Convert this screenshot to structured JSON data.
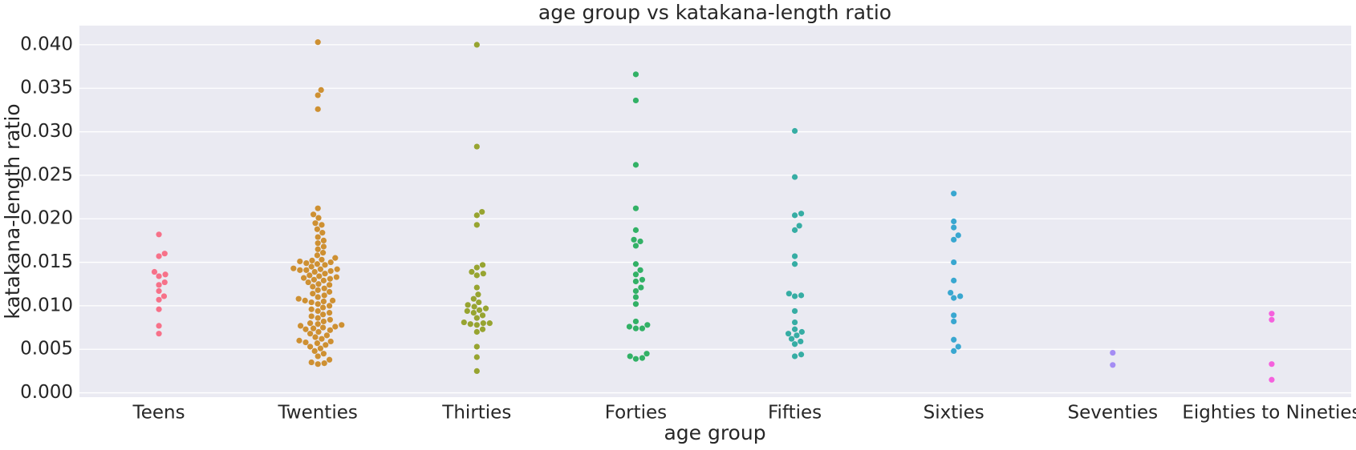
{
  "chart_data": {
    "type": "swarm",
    "title": "age group vs katakana-length ratio",
    "x_label": "age group",
    "y_label": "katakana-length ratio",
    "categories": [
      "Teens",
      "Twenties",
      "Thirties",
      "Forties",
      "Fifties",
      "Sixties",
      "Seventies",
      "Eighties to Nineties"
    ],
    "colors": [
      "#f77189",
      "#ce9032",
      "#97a431",
      "#32b166",
      "#36ada4",
      "#39a7d0",
      "#a48cf4",
      "#f561dd"
    ],
    "values": [
      [
        0.0182,
        0.016,
        0.0157,
        0.0139,
        0.0136,
        0.0134,
        0.0127,
        0.0124,
        0.0117,
        0.0111,
        0.0107,
        0.0096,
        0.0077,
        0.0068
      ],
      [
        0.0403,
        0.0348,
        0.0342,
        0.0326,
        0.0212,
        0.0205,
        0.0201,
        0.0195,
        0.0193,
        0.0188,
        0.0184,
        0.0179,
        0.0175,
        0.0172,
        0.0168,
        0.0165,
        0.0161,
        0.0158,
        0.0155,
        0.0153,
        0.0152,
        0.0151,
        0.015,
        0.0149,
        0.0148,
        0.0147,
        0.0145,
        0.0143,
        0.0142,
        0.0142,
        0.0141,
        0.0141,
        0.014,
        0.0139,
        0.0137,
        0.0135,
        0.0134,
        0.0133,
        0.0132,
        0.0131,
        0.013,
        0.0129,
        0.0127,
        0.0125,
        0.0124,
        0.0122,
        0.012,
        0.0118,
        0.0116,
        0.0114,
        0.0112,
        0.011,
        0.0108,
        0.0106,
        0.0106,
        0.0105,
        0.0104,
        0.0102,
        0.01,
        0.0098,
        0.0096,
        0.0094,
        0.0092,
        0.009,
        0.0088,
        0.0086,
        0.0084,
        0.0082,
        0.008,
        0.0079,
        0.0078,
        0.0077,
        0.0076,
        0.0075,
        0.0074,
        0.0073,
        0.0072,
        0.007,
        0.0068,
        0.0066,
        0.0064,
        0.0062,
        0.006,
        0.0059,
        0.0058,
        0.0057,
        0.0055,
        0.0053,
        0.0051,
        0.0048,
        0.0045,
        0.0042,
        0.0038,
        0.0035,
        0.0034,
        0.0033
      ],
      [
        0.04,
        0.0283,
        0.0208,
        0.0204,
        0.0193,
        0.0147,
        0.0144,
        0.0139,
        0.0137,
        0.0135,
        0.0121,
        0.0113,
        0.0108,
        0.0104,
        0.0101,
        0.0099,
        0.0097,
        0.0095,
        0.0094,
        0.0092,
        0.0089,
        0.0086,
        0.0081,
        0.008,
        0.008,
        0.0079,
        0.0078,
        0.0073,
        0.007,
        0.0053,
        0.0041,
        0.0025
      ],
      [
        0.0366,
        0.0336,
        0.0262,
        0.0212,
        0.0187,
        0.0176,
        0.0174,
        0.0169,
        0.0148,
        0.0141,
        0.0136,
        0.013,
        0.0128,
        0.0121,
        0.0117,
        0.011,
        0.0102,
        0.0082,
        0.0078,
        0.0076,
        0.0074,
        0.0074,
        0.0045,
        0.0042,
        0.004,
        0.0039
      ],
      [
        0.0301,
        0.0248,
        0.0206,
        0.0204,
        0.0192,
        0.0187,
        0.0157,
        0.0148,
        0.0114,
        0.0112,
        0.0111,
        0.0094,
        0.0081,
        0.0073,
        0.007,
        0.0068,
        0.0066,
        0.0062,
        0.0059,
        0.0056,
        0.0044,
        0.0042
      ],
      [
        0.0229,
        0.0197,
        0.019,
        0.0181,
        0.0176,
        0.015,
        0.0129,
        0.0115,
        0.0111,
        0.0109,
        0.0089,
        0.0082,
        0.0061,
        0.0053,
        0.0048
      ],
      [
        0.0046,
        0.0032
      ],
      [
        0.0091,
        0.0084,
        0.0033,
        0.0015
      ]
    ],
    "ylim": [
      -0.0005,
      0.0422
    ],
    "yticks": [
      {
        "value": 0,
        "label": "0.000"
      },
      {
        "value": 0.005,
        "label": "0.005"
      },
      {
        "value": 0.01,
        "label": "0.010"
      },
      {
        "value": 0.015,
        "label": "0.015"
      },
      {
        "value": 0.02,
        "label": "0.020"
      },
      {
        "value": 0.025,
        "label": "0.025"
      },
      {
        "value": 0.03,
        "label": "0.030"
      },
      {
        "value": 0.035,
        "label": "0.035"
      },
      {
        "value": 0.04,
        "label": "0.040"
      }
    ],
    "grid": true
  }
}
